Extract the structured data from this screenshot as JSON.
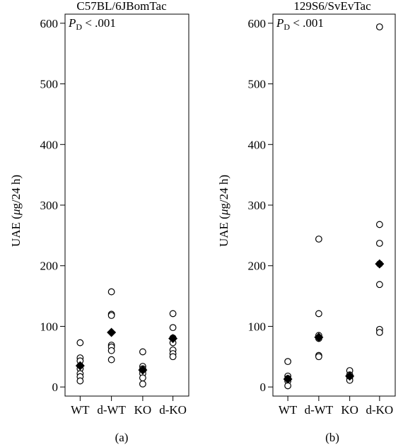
{
  "chart_data": [
    {
      "type": "scatter",
      "title": "C57BL/6JBomTac",
      "panel_label": "(a)",
      "stat": {
        "p_letter": "P",
        "p_sub": "D",
        "p_rest": " < .001"
      },
      "ylabel": {
        "pre": "UAE (",
        "mu": "μ",
        "post": "g/24 h)"
      },
      "ylim": [
        -15,
        615
      ],
      "yticks": [
        0,
        100,
        200,
        300,
        400,
        500,
        600
      ],
      "categories": [
        "WT",
        "d-WT",
        "KO",
        "d-KO"
      ],
      "points": [
        [
          73,
          48,
          43,
          35,
          30,
          22,
          17,
          10
        ],
        [
          157,
          120,
          118,
          69,
          66,
          60,
          45
        ],
        [
          58,
          34,
          30,
          26,
          22,
          15,
          5
        ],
        [
          121,
          98,
          81,
          73,
          61,
          55,
          50
        ]
      ],
      "means": [
        35,
        90,
        28,
        80
      ]
    },
    {
      "type": "scatter",
      "title": "129S6/SvEvTac",
      "panel_label": "(b)",
      "stat": {
        "p_letter": "P",
        "p_sub": "D",
        "p_rest": " < .001"
      },
      "ylabel": {
        "pre": "UAE (",
        "mu": "μ",
        "post": "g/24 h)"
      },
      "ylim": [
        -15,
        615
      ],
      "yticks": [
        0,
        100,
        200,
        300,
        400,
        500,
        600
      ],
      "categories": [
        "WT",
        "d-WT",
        "KO",
        "d-KO"
      ],
      "points": [
        [
          42,
          18,
          14,
          10,
          2
        ],
        [
          244,
          121,
          85,
          80,
          52,
          50
        ],
        [
          27,
          20,
          16,
          11
        ],
        [
          594,
          268,
          237,
          203,
          169,
          95,
          90
        ]
      ],
      "means": [
        13,
        82,
        18,
        203
      ]
    }
  ]
}
